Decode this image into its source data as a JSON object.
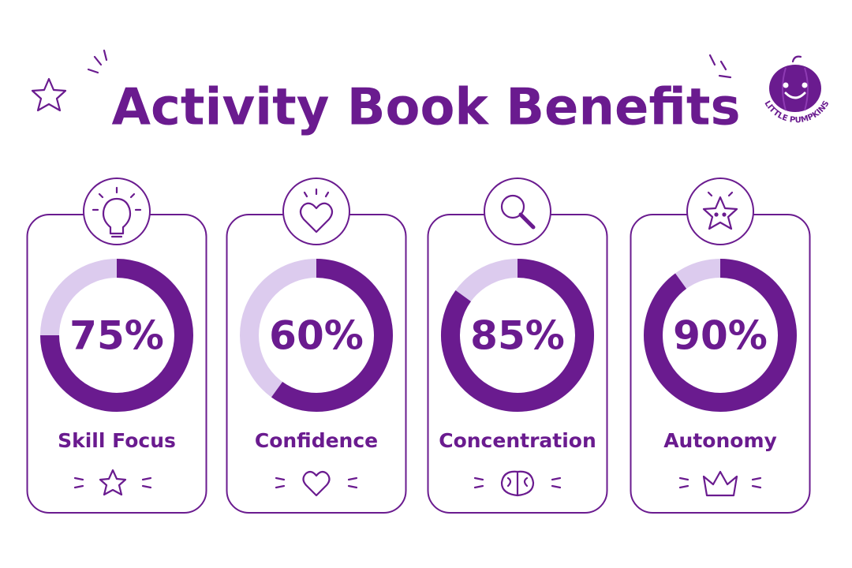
{
  "title": "Activity Book Benefits",
  "brand": "LITTLE PUMPKINS",
  "chart_data": [
    {
      "type": "donut",
      "title": "Skill Focus",
      "values": [
        75
      ],
      "value_labels": [
        "75%"
      ],
      "color": "#6a1b8f",
      "track_color": "#dccbee"
    },
    {
      "type": "donut",
      "title": "Confidence",
      "values": [
        60
      ],
      "value_labels": [
        "60%"
      ],
      "color": "#6a1b8f",
      "track_color": "#dccbee"
    },
    {
      "type": "donut",
      "title": "Concentration",
      "values": [
        85
      ],
      "value_labels": [
        "85%"
      ],
      "color": "#6a1b8f",
      "track_color": "#dccbee"
    },
    {
      "type": "donut",
      "title": "Autonomy",
      "values": [
        90
      ],
      "value_labels": [
        "90%"
      ],
      "color": "#6a1b8f",
      "track_color": "#dccbee"
    }
  ]
}
